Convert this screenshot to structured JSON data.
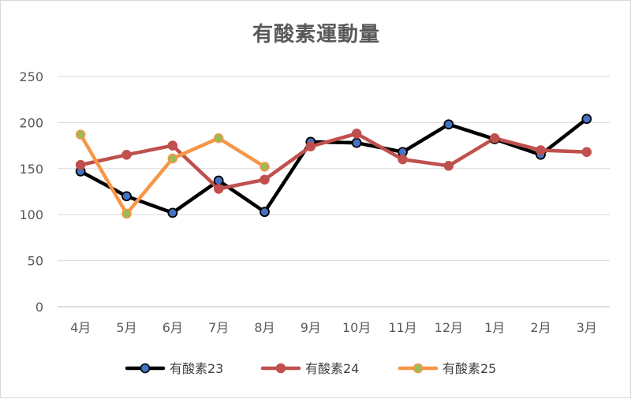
{
  "chart_data": {
    "type": "line",
    "title": "有酸素運動量",
    "categories": [
      "4月",
      "5月",
      "6月",
      "7月",
      "8月",
      "9月",
      "10月",
      "11月",
      "12月",
      "1月",
      "2月",
      "3月"
    ],
    "ylim": [
      0,
      250
    ],
    "yticks": [
      0,
      50,
      100,
      150,
      200,
      250
    ],
    "grid": true,
    "legend_position": "bottom",
    "series": [
      {
        "name": "有酸素23",
        "line_color": "#000000",
        "marker_color": "#4472c4",
        "values": [
          147,
          120,
          102,
          137,
          103,
          179,
          178,
          168,
          198,
          182,
          165,
          204
        ]
      },
      {
        "name": "有酸素24",
        "line_color": "#c0504d",
        "marker_color": "#c0504d",
        "values": [
          154,
          165,
          175,
          128,
          138,
          174,
          188,
          160,
          153,
          183,
          170,
          168
        ]
      },
      {
        "name": "有酸素25",
        "line_color": "#f79646",
        "marker_color": "#9bbb59",
        "values": [
          187,
          101,
          161,
          183,
          152,
          null,
          null,
          null,
          null,
          null,
          null,
          null
        ]
      }
    ]
  }
}
